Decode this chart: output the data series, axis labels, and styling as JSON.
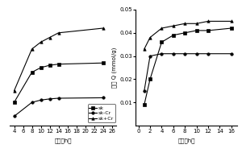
{
  "left": {
    "series": {
      "sk": {
        "x": [
          4,
          8,
          10,
          12,
          14,
          24
        ],
        "y": [
          1.5,
          2.8,
          3.0,
          3.1,
          3.15,
          3.2
        ]
      },
      "sk-Cr": {
        "x": [
          4,
          8,
          10,
          12,
          14,
          24
        ],
        "y": [
          0.9,
          1.5,
          1.6,
          1.65,
          1.68,
          1.7
        ]
      },
      "sk+Cr": {
        "x": [
          4,
          8,
          10,
          12,
          14,
          24
        ],
        "y": [
          2.0,
          3.8,
          4.1,
          4.3,
          4.5,
          4.7
        ]
      }
    },
    "xlabel": "时间（h）",
    "xticks": [
      4,
      6,
      8,
      10,
      12,
      14,
      16,
      18,
      20,
      22,
      24,
      26
    ],
    "xlim": [
      3,
      27
    ],
    "ylim": [
      0.5,
      5.5
    ],
    "legend_labels": [
      "sk",
      "sk-Cr",
      "sk+Cr"
    ],
    "markers": [
      "s",
      "o",
      "^"
    ]
  },
  "right": {
    "series": {
      "sk": {
        "x": [
          1,
          2,
          4,
          6,
          8,
          10,
          12,
          16
        ],
        "y": [
          0.009,
          0.02,
          0.036,
          0.039,
          0.04,
          0.041,
          0.041,
          0.042
        ]
      },
      "sk-Cr": {
        "x": [
          1,
          2,
          4,
          6,
          8,
          10,
          12,
          16
        ],
        "y": [
          0.015,
          0.03,
          0.031,
          0.031,
          0.031,
          0.031,
          0.031,
          0.031
        ]
      },
      "sk+Cr": {
        "x": [
          1,
          2,
          4,
          6,
          8,
          10,
          12,
          16
        ],
        "y": [
          0.033,
          0.038,
          0.042,
          0.043,
          0.044,
          0.044,
          0.045,
          0.045
        ]
      }
    },
    "xlabel": "时间（h）",
    "ylabel": "乙醛 Q（mmol/g）",
    "xticks": [
      0,
      2,
      4,
      6,
      8,
      10,
      12,
      14,
      16
    ],
    "xlim": [
      -0.5,
      17
    ],
    "ylim": [
      0,
      0.05
    ],
    "yticks": [
      0.01,
      0.02,
      0.03,
      0.04,
      0.05
    ],
    "markers": [
      "s",
      "o",
      "^"
    ]
  },
  "fontsize": 5.0,
  "legend_fontsize": 4.5
}
